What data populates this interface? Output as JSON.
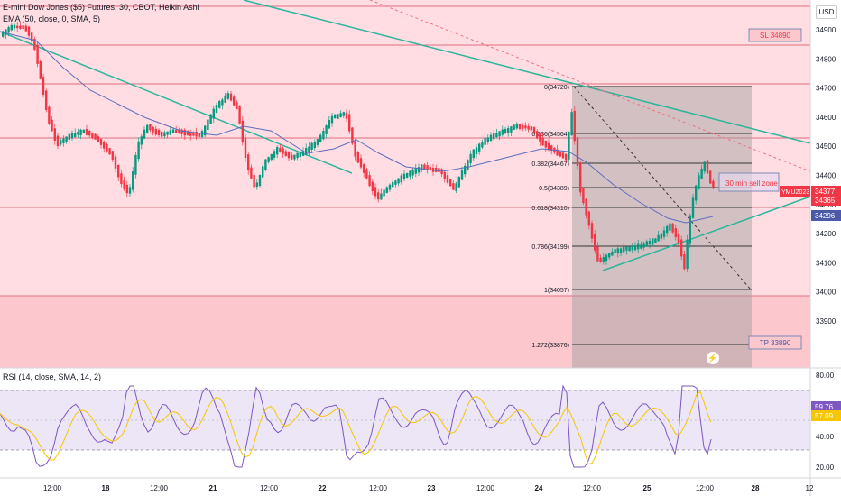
{
  "header": {
    "title": "E-mini Dow Jones ($5) Futures, 30, CBOT, Heikin Ashi",
    "indicator": "EMA (50, close, 0, SMA, 5)",
    "currency": "USD"
  },
  "price_axis": {
    "ticks": [
      "34900",
      "34800",
      "34700",
      "34600",
      "34500",
      "34400",
      "34300",
      "34200",
      "34100",
      "34000",
      "33900"
    ],
    "labels": [
      {
        "text": "YMU2023",
        "value": "34377",
        "color": "#f23645"
      },
      {
        "text": "",
        "value": "34365",
        "color": "#f23645"
      },
      {
        "text": "",
        "value": "34296",
        "color": "#4a59a8"
      }
    ]
  },
  "time_axis": {
    "ticks": [
      "12:00",
      "18",
      "12:00",
      "21",
      "12:00",
      "22",
      "12:00",
      "23",
      "12:00",
      "24",
      "12:00",
      "25",
      "12:00",
      "28",
      "12"
    ]
  },
  "fib": {
    "levels": [
      {
        "ratio": "0",
        "price": "34720"
      },
      {
        "ratio": "0.236",
        "price": "34564"
      },
      {
        "ratio": "0.382",
        "price": "34467"
      },
      {
        "ratio": "0.5",
        "price": "34389"
      },
      {
        "ratio": "0.618",
        "price": "34310"
      },
      {
        "ratio": "0.786",
        "price": "34199"
      },
      {
        "ratio": "1",
        "price": "34057"
      },
      {
        "ratio": "1.272",
        "price": "33876"
      }
    ]
  },
  "annotations": {
    "sl": "SL 34890",
    "tp": "TP 33890",
    "sell_zone": "30 min sell zone"
  },
  "rsi": {
    "title": "RSI (14, close, SMA, 14, 2)",
    "ticks": [
      "80.00",
      "40.00",
      "20.00"
    ],
    "labels": [
      {
        "value": "59.76",
        "color": "#7e57c2"
      },
      {
        "value": "57.09",
        "color": "#f7c600"
      }
    ]
  },
  "colors": {
    "up": "#089981",
    "down": "#f23645",
    "ema": "#5b6dbf",
    "rsi": "#7e57c2",
    "rsi_ma": "#f7c600",
    "trend": "#2bb59a",
    "zone": "#ffd6db"
  }
}
